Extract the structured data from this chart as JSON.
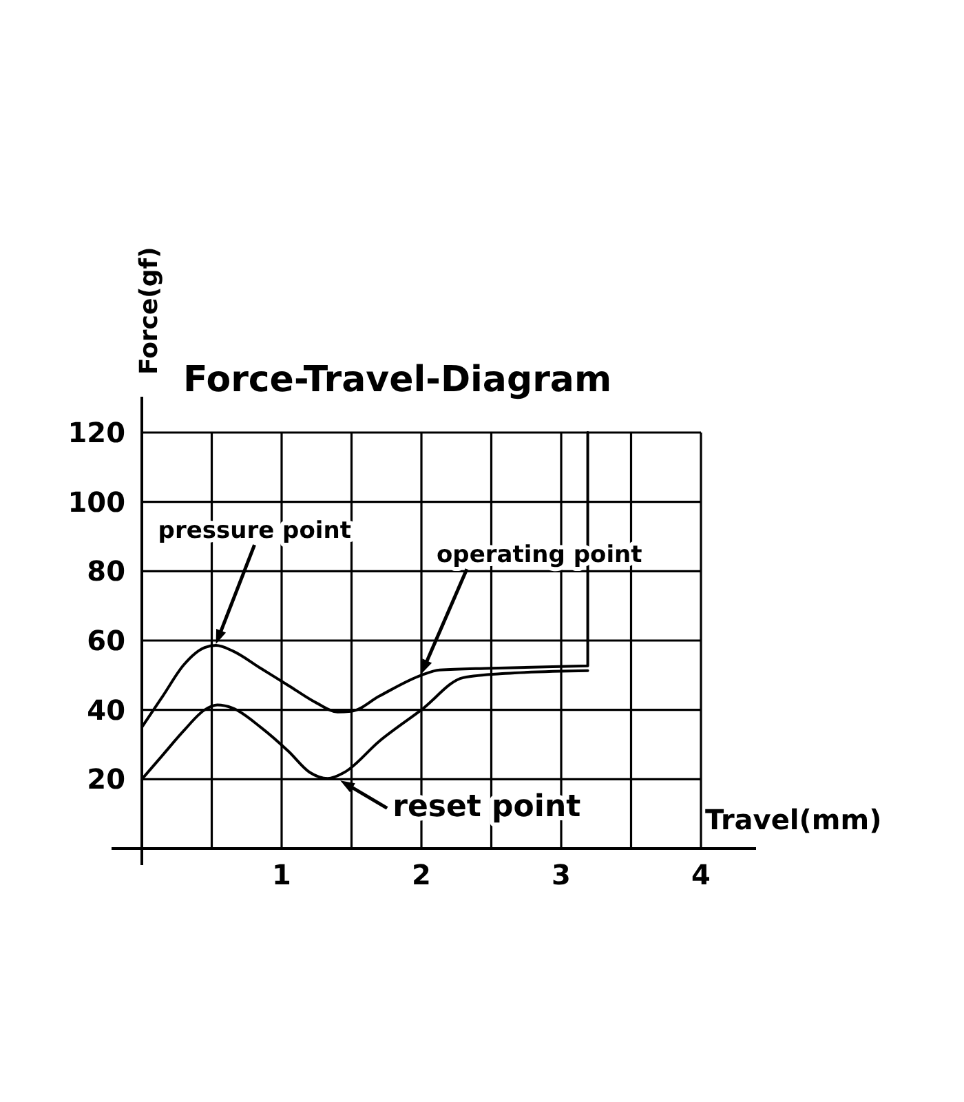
{
  "chart_data": {
    "type": "line",
    "title": "Force-Travel-Diagram",
    "xlabel": "Travel(mm)",
    "ylabel": "Force(gf)",
    "xlim": [
      0,
      4
    ],
    "ylim": [
      0,
      120
    ],
    "xticks": [
      1,
      2,
      3,
      4
    ],
    "yticks": [
      20,
      40,
      60,
      80,
      100,
      120
    ],
    "grid": true,
    "marker": "none",
    "line_style": "solid",
    "series": [
      {
        "color": "#000000",
        "x": [
          0,
          0.15,
          0.3,
          0.45,
          0.53,
          0.65,
          0.85,
          1.05,
          1.25,
          1.4,
          1.5,
          1.7,
          2.0,
          2.13,
          2.5,
          3.19,
          3.19
        ],
        "values": [
          35,
          44,
          53,
          58,
          58.6,
          57,
          52,
          47,
          42,
          39.4,
          39.6,
          44,
          50,
          51.5,
          52,
          52.7,
          120
        ]
      },
      {
        "color": "#000000",
        "x": [
          0,
          0.15,
          0.3,
          0.45,
          0.54,
          0.65,
          0.85,
          1.05,
          1.2,
          1.33,
          1.45,
          1.7,
          2.0,
          2.3,
          2.6,
          3.19
        ],
        "values": [
          20,
          27,
          34,
          40,
          41.4,
          40.5,
          35,
          28,
          22,
          20.2,
          22,
          31,
          40,
          49.3,
          50.5,
          51.3
        ]
      }
    ],
    "annotations": [
      {
        "text": "pressure point",
        "x": 0.53,
        "y": 58.6
      },
      {
        "text": "operating point",
        "x": 2.0,
        "y": 50
      },
      {
        "text": "reset point",
        "x": 1.4,
        "y": 20
      }
    ]
  }
}
